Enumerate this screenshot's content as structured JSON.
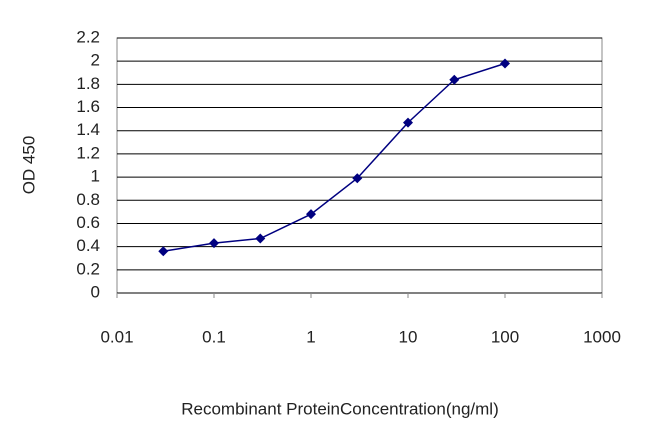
{
  "chart_data": {
    "type": "line",
    "x_label": "Recombinant ProteinConcentration(ng/ml)",
    "y_label": "OD 450",
    "x": [
      0.03,
      0.1,
      0.3,
      1,
      3,
      10,
      30,
      100
    ],
    "values": [
      0.36,
      0.43,
      0.47,
      0.68,
      0.99,
      1.47,
      1.84,
      1.98
    ],
    "color": "#000080",
    "xscale": "log",
    "xlim": [
      0.01,
      1000
    ],
    "xticks": [
      0.01,
      0.1,
      1,
      10,
      100,
      1000
    ],
    "ylim": [
      0,
      2.2
    ],
    "yticks": [
      0,
      0.2,
      0.4,
      0.6,
      0.8,
      1,
      1.2,
      1.4,
      1.6,
      1.8,
      2,
      2.2
    ],
    "grid": true
  }
}
